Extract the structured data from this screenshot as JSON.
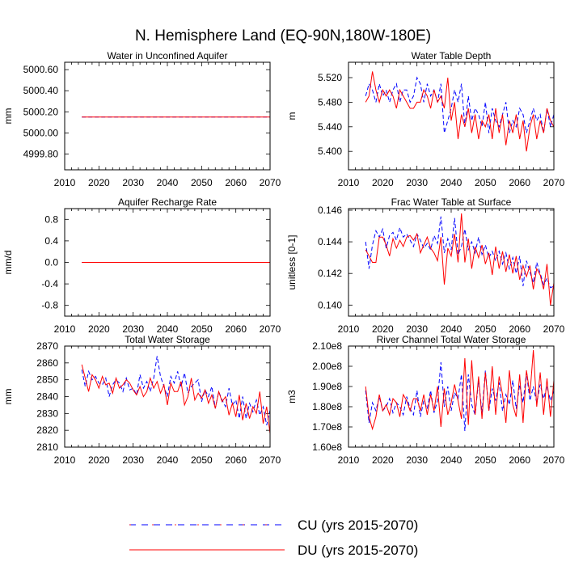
{
  "title": "N. Hemisphere Land (EQ-90N,180W-180E)",
  "legend": [
    {
      "label": "CU (yrs 2015-2070)",
      "color": "#0000ff",
      "style": "dashed"
    },
    {
      "label": "DU (yrs 2015-2070)",
      "color": "#ff0000",
      "style": "solid"
    }
  ],
  "chart_data": [
    {
      "type": "line",
      "title": "Water in Unconfined Aquifer",
      "xlabel": "",
      "ylabel": "mm",
      "xlim": [
        2010,
        2070
      ],
      "xticks": [
        2010,
        2020,
        2030,
        2040,
        2050,
        2060,
        2070
      ],
      "ylim": [
        4999.65,
        5000.67
      ],
      "yticks": [
        4999.8,
        5000.0,
        5000.2,
        5000.4,
        5000.6
      ],
      "ytick_labels": [
        "4999.80",
        "5000.00",
        "5000.20",
        "5000.40",
        "5000.60"
      ],
      "x": [
        2015,
        2070
      ],
      "series": [
        {
          "name": "CU (yrs 2015-2070)",
          "values": [
            5000.15,
            5000.15
          ]
        },
        {
          "name": "DU (yrs 2015-2070)",
          "values": [
            5000.15,
            5000.15
          ]
        }
      ]
    },
    {
      "type": "line",
      "title": "Water Table Depth",
      "xlabel": "",
      "ylabel": "m",
      "xlim": [
        2010,
        2070
      ],
      "xticks": [
        2010,
        2020,
        2030,
        2040,
        2050,
        2060,
        2070
      ],
      "ylim": [
        5.37,
        5.545
      ],
      "yticks": [
        5.4,
        5.44,
        5.48,
        5.52
      ],
      "ytick_labels": [
        "5.400",
        "5.440",
        "5.480",
        "5.520"
      ],
      "x": [
        2015,
        2016,
        2017,
        2018,
        2019,
        2020,
        2021,
        2022,
        2023,
        2024,
        2025,
        2026,
        2027,
        2028,
        2029,
        2030,
        2031,
        2032,
        2033,
        2034,
        2035,
        2036,
        2037,
        2038,
        2039,
        2040,
        2041,
        2042,
        2043,
        2044,
        2045,
        2046,
        2047,
        2048,
        2049,
        2050,
        2051,
        2052,
        2053,
        2054,
        2055,
        2056,
        2057,
        2058,
        2059,
        2060,
        2061,
        2062,
        2063,
        2064,
        2065,
        2066,
        2067,
        2068,
        2069,
        2070
      ],
      "series": [
        {
          "name": "CU (yrs 2015-2070)",
          "values": [
            5.49,
            5.51,
            5.5,
            5.48,
            5.51,
            5.49,
            5.5,
            5.48,
            5.5,
            5.51,
            5.48,
            5.5,
            5.5,
            5.48,
            5.49,
            5.52,
            5.51,
            5.48,
            5.51,
            5.49,
            5.5,
            5.48,
            5.51,
            5.43,
            5.45,
            5.47,
            5.5,
            5.48,
            5.51,
            5.44,
            5.49,
            5.45,
            5.47,
            5.46,
            5.44,
            5.48,
            5.43,
            5.47,
            5.45,
            5.44,
            5.46,
            5.48,
            5.43,
            5.45,
            5.44,
            5.47,
            5.46,
            5.43,
            5.45,
            5.47,
            5.45,
            5.46,
            5.43,
            5.47,
            5.44,
            5.46
          ]
        },
        {
          "name": "DU (yrs 2015-2070)",
          "values": [
            5.48,
            5.49,
            5.53,
            5.5,
            5.48,
            5.5,
            5.49,
            5.5,
            5.49,
            5.47,
            5.5,
            5.49,
            5.48,
            5.47,
            5.47,
            5.48,
            5.48,
            5.5,
            5.49,
            5.47,
            5.5,
            5.48,
            5.49,
            5.47,
            5.52,
            5.45,
            5.48,
            5.42,
            5.46,
            5.44,
            5.47,
            5.43,
            5.46,
            5.42,
            5.45,
            5.44,
            5.46,
            5.42,
            5.47,
            5.43,
            5.46,
            5.41,
            5.45,
            5.43,
            5.46,
            5.42,
            5.45,
            5.4,
            5.44,
            5.46,
            5.42,
            5.45,
            5.43,
            5.47,
            5.45,
            5.44
          ]
        }
      ]
    },
    {
      "type": "line",
      "title": "Aquifer Recharge Rate",
      "xlabel": "",
      "ylabel": "mm/d",
      "xlim": [
        2010,
        2070
      ],
      "xticks": [
        2010,
        2020,
        2030,
        2040,
        2050,
        2060,
        2070
      ],
      "ylim": [
        -1.0,
        1.0
      ],
      "yticks": [
        -0.8,
        -0.4,
        0.0,
        0.4,
        0.8
      ],
      "ytick_labels": [
        "-0.8",
        "-0.4",
        "0.0",
        "0.4",
        "0.8"
      ],
      "x": [
        2015,
        2070
      ],
      "series": [
        {
          "name": "CU (yrs 2015-2070)",
          "values": [
            0.0,
            0.0
          ]
        },
        {
          "name": "DU (yrs 2015-2070)",
          "values": [
            0.0,
            0.0
          ]
        }
      ]
    },
    {
      "type": "line",
      "title": "Frac Water Table at Surface",
      "xlabel": "",
      "ylabel": "unitless [0-1]",
      "xlim": [
        2010,
        2070
      ],
      "xticks": [
        2010,
        2020,
        2030,
        2040,
        2050,
        2060,
        2070
      ],
      "ylim": [
        0.1393,
        0.1461
      ],
      "yticks": [
        0.14,
        0.142,
        0.144,
        0.146
      ],
      "ytick_labels": [
        "0.140",
        "0.142",
        "0.144",
        "0.146"
      ],
      "x": [
        2015,
        2016,
        2017,
        2018,
        2019,
        2020,
        2021,
        2022,
        2023,
        2024,
        2025,
        2026,
        2027,
        2028,
        2029,
        2030,
        2031,
        2032,
        2033,
        2034,
        2035,
        2036,
        2037,
        2038,
        2039,
        2040,
        2041,
        2042,
        2043,
        2044,
        2045,
        2046,
        2047,
        2048,
        2049,
        2050,
        2051,
        2052,
        2053,
        2054,
        2055,
        2056,
        2057,
        2058,
        2059,
        2060,
        2061,
        2062,
        2063,
        2064,
        2065,
        2066,
        2067,
        2068,
        2069,
        2070
      ],
      "series": [
        {
          "name": "CU (yrs 2015-2070)",
          "values": [
            0.144,
            0.1423,
            0.1438,
            0.1447,
            0.1443,
            0.1448,
            0.1436,
            0.1444,
            0.1446,
            0.1441,
            0.1449,
            0.1443,
            0.1445,
            0.1441,
            0.1437,
            0.1445,
            0.1441,
            0.1436,
            0.1439,
            0.1435,
            0.1444,
            0.1439,
            0.1456,
            0.1433,
            0.1442,
            0.1435,
            0.1455,
            0.1432,
            0.1437,
            0.1448,
            0.1435,
            0.144,
            0.1433,
            0.1443,
            0.1432,
            0.1438,
            0.143,
            0.1434,
            0.1428,
            0.1434,
            0.1426,
            0.1433,
            0.1423,
            0.143,
            0.142,
            0.1431,
            0.1412,
            0.1428,
            0.1421,
            0.1414,
            0.1427,
            0.142,
            0.1413,
            0.1417,
            0.1411,
            0.1412
          ]
        },
        {
          "name": "DU (yrs 2015-2070)",
          "values": [
            0.1435,
            0.1431,
            0.1427,
            0.1427,
            0.1443,
            0.1443,
            0.1438,
            0.1431,
            0.1442,
            0.1436,
            0.1441,
            0.1437,
            0.1443,
            0.1444,
            0.1441,
            0.1445,
            0.1433,
            0.1438,
            0.1443,
            0.1436,
            0.1433,
            0.1428,
            0.1443,
            0.1413,
            0.1436,
            0.1431,
            0.1445,
            0.1427,
            0.1458,
            0.1427,
            0.1442,
            0.1423,
            0.1437,
            0.143,
            0.1438,
            0.1426,
            0.1433,
            0.1419,
            0.1437,
            0.1423,
            0.1434,
            0.1421,
            0.1432,
            0.142,
            0.1431,
            0.1416,
            0.1425,
            0.1418,
            0.1425,
            0.141,
            0.1423,
            0.1419,
            0.141,
            0.1426,
            0.14,
            0.1414
          ]
        }
      ]
    },
    {
      "type": "line",
      "title": "Total Water Storage",
      "xlabel": "",
      "ylabel": "mm",
      "xlim": [
        2010,
        2070
      ],
      "xticks": [
        2010,
        2020,
        2030,
        2040,
        2050,
        2060,
        2070
      ],
      "ylim": [
        2810,
        2870
      ],
      "yticks": [
        2810,
        2820,
        2830,
        2840,
        2850,
        2860,
        2870
      ],
      "ytick_labels": [
        "2810",
        "2820",
        "2830",
        "2840",
        "2850",
        "2860",
        "2870"
      ],
      "x": [
        2015,
        2016,
        2017,
        2018,
        2019,
        2020,
        2021,
        2022,
        2023,
        2024,
        2025,
        2026,
        2027,
        2028,
        2029,
        2030,
        2031,
        2032,
        2033,
        2034,
        2035,
        2036,
        2037,
        2038,
        2039,
        2040,
        2041,
        2042,
        2043,
        2044,
        2045,
        2046,
        2047,
        2048,
        2049,
        2050,
        2051,
        2052,
        2053,
        2054,
        2055,
        2056,
        2057,
        2058,
        2059,
        2060,
        2061,
        2062,
        2063,
        2064,
        2065,
        2066,
        2067,
        2068,
        2069,
        2070
      ],
      "series": [
        {
          "name": "CU (yrs 2015-2070)",
          "values": [
            2856,
            2846,
            2855,
            2850,
            2852,
            2848,
            2847,
            2851,
            2840,
            2847,
            2850,
            2848,
            2843,
            2851,
            2844,
            2845,
            2841,
            2853,
            2845,
            2849,
            2843,
            2851,
            2864,
            2852,
            2846,
            2840,
            2852,
            2848,
            2855,
            2846,
            2854,
            2842,
            2846,
            2848,
            2850,
            2837,
            2844,
            2840,
            2846,
            2833,
            2843,
            2838,
            2834,
            2845,
            2835,
            2838,
            2827,
            2840,
            2827,
            2836,
            2831,
            2838,
            2829,
            2834,
            2823,
            2832
          ]
        },
        {
          "name": "DU (yrs 2015-2070)",
          "values": [
            2859,
            2851,
            2843,
            2853,
            2850,
            2845,
            2852,
            2847,
            2848,
            2842,
            2851,
            2845,
            2847,
            2850,
            2848,
            2844,
            2841,
            2846,
            2840,
            2843,
            2851,
            2845,
            2849,
            2842,
            2847,
            2835,
            2848,
            2843,
            2843,
            2849,
            2835,
            2840,
            2851,
            2838,
            2842,
            2839,
            2844,
            2836,
            2841,
            2833,
            2843,
            2837,
            2840,
            2829,
            2836,
            2828,
            2841,
            2826,
            2836,
            2827,
            2834,
            2830,
            2843,
            2824,
            2834,
            2818
          ]
        }
      ]
    },
    {
      "type": "line",
      "title": "River Channel Total Water Storage",
      "xlabel": "",
      "ylabel": "m3",
      "xlim": [
        2010,
        2070
      ],
      "xticks": [
        2010,
        2020,
        2030,
        2040,
        2050,
        2060,
        2070
      ],
      "ylim": [
        160000000,
        210000000
      ],
      "yticks": [
        160000000,
        170000000,
        180000000,
        190000000,
        200000000,
        210000000
      ],
      "ytick_labels": [
        "1.60e8",
        "1.70e8",
        "1.80e8",
        "1.90e8",
        "2.00e8",
        "2.10e8"
      ],
      "x": [
        2015,
        2016,
        2017,
        2018,
        2019,
        2020,
        2021,
        2022,
        2023,
        2024,
        2025,
        2026,
        2027,
        2028,
        2029,
        2030,
        2031,
        2032,
        2033,
        2034,
        2035,
        2036,
        2037,
        2038,
        2039,
        2040,
        2041,
        2042,
        2043,
        2044,
        2045,
        2046,
        2047,
        2048,
        2049,
        2050,
        2051,
        2052,
        2053,
        2054,
        2055,
        2056,
        2057,
        2058,
        2059,
        2060,
        2061,
        2062,
        2063,
        2064,
        2065,
        2066,
        2067,
        2068,
        2069,
        2070
      ],
      "series": [
        {
          "name": "CU (yrs 2015-2070)",
          "values": [
            188000000,
            172000000,
            182000000,
            178000000,
            185000000,
            178000000,
            180000000,
            184000000,
            177000000,
            182000000,
            180000000,
            176000000,
            185000000,
            179000000,
            176000000,
            188000000,
            175000000,
            183000000,
            179000000,
            188000000,
            177000000,
            183000000,
            202000000,
            180000000,
            190000000,
            178000000,
            187000000,
            184000000,
            196000000,
            168000000,
            196000000,
            181000000,
            176000000,
            193000000,
            177000000,
            198000000,
            178000000,
            189000000,
            183000000,
            192000000,
            178000000,
            186000000,
            181000000,
            193000000,
            179000000,
            191000000,
            182000000,
            197000000,
            183000000,
            190000000,
            182000000,
            191000000,
            184000000,
            190000000,
            183000000,
            188000000
          ]
        },
        {
          "name": "DU (yrs 2015-2070)",
          "values": [
            190000000,
            175000000,
            169000000,
            175000000,
            186000000,
            178000000,
            181000000,
            176000000,
            184000000,
            182000000,
            175000000,
            186000000,
            183000000,
            178000000,
            184000000,
            184000000,
            178000000,
            186000000,
            176000000,
            186000000,
            178000000,
            190000000,
            170000000,
            189000000,
            176000000,
            182000000,
            191000000,
            183000000,
            174000000,
            204000000,
            171000000,
            203000000,
            176000000,
            195000000,
            174000000,
            197000000,
            178000000,
            200000000,
            176000000,
            195000000,
            186000000,
            172000000,
            198000000,
            181000000,
            175000000,
            196000000,
            172000000,
            198000000,
            186000000,
            208000000,
            180000000,
            197000000,
            176000000,
            194000000,
            175000000,
            193000000
          ]
        }
      ]
    }
  ]
}
